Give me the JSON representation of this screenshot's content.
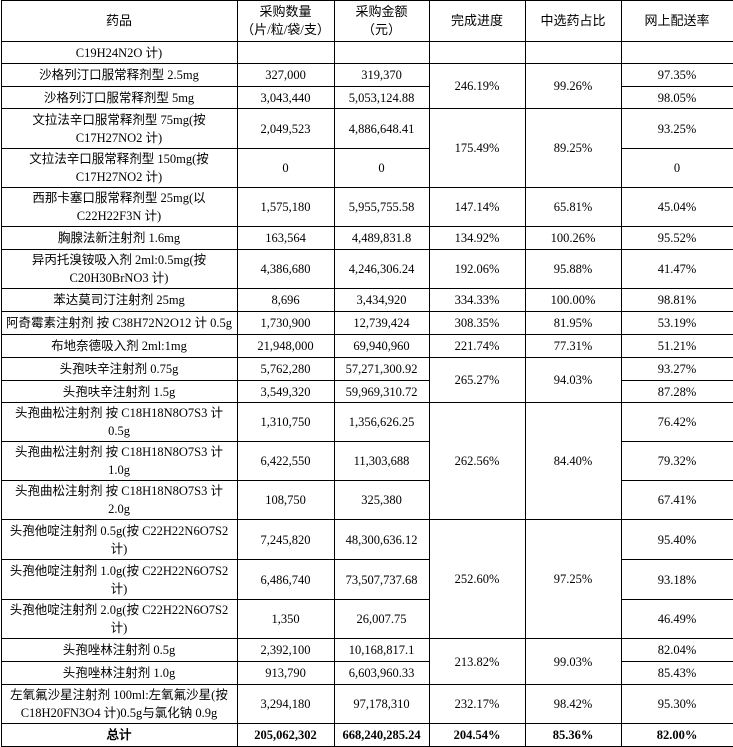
{
  "headers": [
    "药品",
    "采购数量\n（片/粒/袋/支）",
    "采购金额\n（元）",
    "完成进度",
    "中选药占比",
    "网上配送率"
  ],
  "rows": [
    {
      "name": "C19H24N2O 计)",
      "qty": "",
      "amount": "",
      "progress": "",
      "share": "",
      "rate": "",
      "span": 1
    },
    {
      "name": "沙格列汀口服常释剂型 2.5mg",
      "qty": "327,000",
      "amount": "319,370",
      "progress": "246.19%",
      "share": "99.26%",
      "rate": "97.35%",
      "span": 2
    },
    {
      "name": "沙格列汀口服常释剂型 5mg",
      "qty": "3,043,440",
      "amount": "5,053,124.88",
      "rate": "98.05%"
    },
    {
      "name": "文拉法辛口服常释剂型 75mg(按\nC17H27NO2 计)",
      "qty": "2,049,523",
      "amount": "4,886,648.41",
      "progress": "175.49%",
      "share": "89.25%",
      "rate": "93.25%",
      "span": 2
    },
    {
      "name": "文拉法辛口服常释剂型 150mg(按\nC17H27NO2 计)",
      "qty": "0",
      "amount": "0",
      "rate": "0"
    },
    {
      "name": "西那卡塞口服常释剂型 25mg(以\nC22H22F3N 计)",
      "qty": "1,575,180",
      "amount": "5,955,755.58",
      "progress": "147.14%",
      "share": "65.81%",
      "rate": "45.04%",
      "span": 1
    },
    {
      "name": "胸腺法新注射剂 1.6mg",
      "qty": "163,564",
      "amount": "4,489,831.8",
      "progress": "134.92%",
      "share": "100.26%",
      "rate": "95.52%",
      "span": 1
    },
    {
      "name": "异丙托溴铵吸入剂 2ml:0.5mg(按\nC20H30BrNO3 计)",
      "qty": "4,386,680",
      "amount": "4,246,306.24",
      "progress": "192.06%",
      "share": "95.88%",
      "rate": "41.47%",
      "span": 1
    },
    {
      "name": "苯达莫司汀注射剂 25mg",
      "qty": "8,696",
      "amount": "3,434,920",
      "progress": "334.33%",
      "share": "100.00%",
      "rate": "98.81%",
      "span": 1
    },
    {
      "name": "阿奇霉素注射剂 按 C38H72N2O12 计 0.5g",
      "qty": "1,730,900",
      "amount": "12,739,424",
      "progress": "308.35%",
      "share": "81.95%",
      "rate": "53.19%",
      "span": 1
    },
    {
      "name": "布地奈德吸入剂 2ml:1mg",
      "qty": "21,948,000",
      "amount": "69,940,960",
      "progress": "221.74%",
      "share": "77.31%",
      "rate": "51.21%",
      "span": 1
    },
    {
      "name": "头孢呋辛注射剂 0.75g",
      "qty": "5,762,280",
      "amount": "57,271,300.92",
      "progress": "265.27%",
      "share": "94.03%",
      "rate": "93.27%",
      "span": 2
    },
    {
      "name": "头孢呋辛注射剂 1.5g",
      "qty": "3,549,320",
      "amount": "59,969,310.72",
      "rate": "87.28%"
    },
    {
      "name": "头孢曲松注射剂 按 C18H18N8O7S3 计\n0.5g",
      "qty": "1,310,750",
      "amount": "1,356,626.25",
      "progress": "262.56%",
      "share": "84.40%",
      "rate": "76.42%",
      "span": 3
    },
    {
      "name": "头孢曲松注射剂 按 C18H18N8O7S3 计\n1.0g",
      "qty": "6,422,550",
      "amount": "11,303,688",
      "rate": "79.32%"
    },
    {
      "name": "头孢曲松注射剂 按 C18H18N8O7S3 计\n2.0g",
      "qty": "108,750",
      "amount": "325,380",
      "rate": "67.41%"
    },
    {
      "name": "头孢他啶注射剂 0.5g(按 C22H22N6O7S2\n计)",
      "qty": "7,245,820",
      "amount": "48,300,636.12",
      "progress": "252.60%",
      "share": "97.25%",
      "rate": "95.40%",
      "span": 3
    },
    {
      "name": "头孢他啶注射剂 1.0g(按 C22H22N6O7S2\n计)",
      "qty": "6,486,740",
      "amount": "73,507,737.68",
      "rate": "93.18%"
    },
    {
      "name": "头孢他啶注射剂 2.0g(按 C22H22N6O7S2\n计)",
      "qty": "1,350",
      "amount": "26,007.75",
      "rate": "46.49%"
    },
    {
      "name": "头孢唑林注射剂 0.5g",
      "qty": "2,392,100",
      "amount": "10,168,817.1",
      "progress": "213.82%",
      "share": "99.03%",
      "rate": "82.04%",
      "span": 2
    },
    {
      "name": "头孢唑林注射剂 1.0g",
      "qty": "913,790",
      "amount": "6,603,960.33",
      "rate": "85.43%"
    },
    {
      "name": "左氧氟沙星注射剂 100ml:左氧氟沙星(按\nC18H20FN3O4 计)0.5g与氯化钠 0.9g",
      "qty": "3,294,180",
      "amount": "97,178,310",
      "progress": "232.17%",
      "share": "98.42%",
      "rate": "95.30%",
      "span": 1
    }
  ],
  "total": {
    "label": "总计",
    "qty": "205,062,302",
    "amount": "668,240,285.24",
    "progress": "204.54%",
    "share": "85.36%",
    "rate": "82.00%"
  }
}
